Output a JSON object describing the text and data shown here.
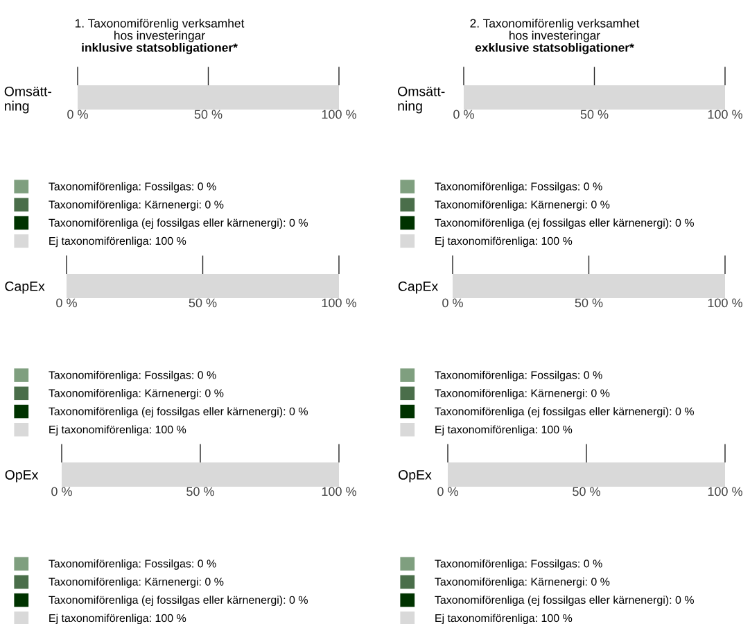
{
  "chart_data": [
    {
      "type": "bar",
      "orientation": "horizontal",
      "title": "1. Taxonomiförenlig verksamhet\nhos investeringar",
      "subtitle": "inklusive statsobligationer*",
      "categories": [
        "Omsätt-\nning"
      ],
      "xlim": [
        0,
        100
      ],
      "xticks": [
        {
          "value": 0,
          "label": "0 %"
        },
        {
          "value": 50,
          "label": "50 %"
        },
        {
          "value": 100,
          "label": "100 %"
        }
      ],
      "legend": "bottom",
      "series": [
        {
          "name": "Taxonomiförenliga: Fossilgas: 0 %",
          "color": "#7f9f7f",
          "values": [
            0
          ]
        },
        {
          "name": "Taxonomiförenliga: Kärnenergi: 0 %",
          "color": "#4a6e4a",
          "values": [
            0
          ]
        },
        {
          "name": "Taxonomiförenliga (ej fossilgas eller kärnenergi): 0 %",
          "color": "#003300",
          "values": [
            0
          ]
        },
        {
          "name": "Ej taxonomiförenliga: 100 %",
          "color": "#d9d9d9",
          "values": [
            100
          ]
        }
      ]
    },
    {
      "type": "bar",
      "orientation": "horizontal",
      "categories": [
        "CapEx"
      ],
      "xlim": [
        0,
        100
      ],
      "xticks": [
        {
          "value": 0,
          "label": "0 %"
        },
        {
          "value": 50,
          "label": "50 %"
        },
        {
          "value": 100,
          "label": "100 %"
        }
      ],
      "legend": "bottom",
      "series": [
        {
          "name": "Taxonomiförenliga: Fossilgas: 0 %",
          "color": "#7f9f7f",
          "values": [
            0
          ]
        },
        {
          "name": "Taxonomiförenliga: Kärnenergi: 0 %",
          "color": "#4a6e4a",
          "values": [
            0
          ]
        },
        {
          "name": "Taxonomiförenliga (ej fossilgas eller kärnenergi): 0 %",
          "color": "#003300",
          "values": [
            0
          ]
        },
        {
          "name": "Ej taxonomiförenliga: 100 %",
          "color": "#d9d9d9",
          "values": [
            100
          ]
        }
      ]
    },
    {
      "type": "bar",
      "orientation": "horizontal",
      "categories": [
        "OpEx"
      ],
      "xlim": [
        0,
        100
      ],
      "xticks": [
        {
          "value": 0,
          "label": "0 %"
        },
        {
          "value": 50,
          "label": "50 %"
        },
        {
          "value": 100,
          "label": "100 %"
        }
      ],
      "legend": "bottom",
      "series": [
        {
          "name": "Taxonomiförenliga: Fossilgas: 0 %",
          "color": "#7f9f7f",
          "values": [
            0
          ]
        },
        {
          "name": "Taxonomiförenliga: Kärnenergi: 0 %",
          "color": "#4a6e4a",
          "values": [
            0
          ]
        },
        {
          "name": "Taxonomiförenliga (ej fossilgas eller kärnenergi): 0 %",
          "color": "#003300",
          "values": [
            0
          ]
        },
        {
          "name": "Ej taxonomiförenliga: 100 %",
          "color": "#d9d9d9",
          "values": [
            100
          ]
        }
      ]
    },
    {
      "type": "bar",
      "orientation": "horizontal",
      "title": "2. Taxonomiförenlig verksamhet\nhos investeringar",
      "subtitle": "exklusive statsobligationer*",
      "categories": [
        "Omsätt-\nning"
      ],
      "xlim": [
        0,
        100
      ],
      "xticks": [
        {
          "value": 0,
          "label": "0 %"
        },
        {
          "value": 50,
          "label": "50 %"
        },
        {
          "value": 100,
          "label": "100 %"
        }
      ],
      "legend": "bottom",
      "series": [
        {
          "name": "Taxonomiförenliga: Fossilgas: 0 %",
          "color": "#7f9f7f",
          "values": [
            0
          ]
        },
        {
          "name": "Taxonomiförenliga: Kärnenergi: 0 %",
          "color": "#4a6e4a",
          "values": [
            0
          ]
        },
        {
          "name": "Taxonomiförenliga (ej fossilgas eller kärnenergi): 0 %",
          "color": "#003300",
          "values": [
            0
          ]
        },
        {
          "name": "Ej taxonomiförenliga: 100 %",
          "color": "#d9d9d9",
          "values": [
            100
          ]
        }
      ]
    },
    {
      "type": "bar",
      "orientation": "horizontal",
      "categories": [
        "CapEx"
      ],
      "xlim": [
        0,
        100
      ],
      "xticks": [
        {
          "value": 0,
          "label": "0 %"
        },
        {
          "value": 50,
          "label": "50 %"
        },
        {
          "value": 100,
          "label": "100 %"
        }
      ],
      "legend": "bottom",
      "series": [
        {
          "name": "Taxonomiförenliga: Fossilgas: 0 %",
          "color": "#7f9f7f",
          "values": [
            0
          ]
        },
        {
          "name": "Taxonomiförenliga: Kärnenergi: 0 %",
          "color": "#4a6e4a",
          "values": [
            0
          ]
        },
        {
          "name": "Taxonomiförenliga (ej fossilgas eller kärnenergi): 0 %",
          "color": "#003300",
          "values": [
            0
          ]
        },
        {
          "name": "Ej taxonomiförenliga: 100 %",
          "color": "#d9d9d9",
          "values": [
            100
          ]
        }
      ]
    },
    {
      "type": "bar",
      "orientation": "horizontal",
      "categories": [
        "OpEx"
      ],
      "xlim": [
        0,
        100
      ],
      "xticks": [
        {
          "value": 0,
          "label": "0 %"
        },
        {
          "value": 50,
          "label": "50 %"
        },
        {
          "value": 100,
          "label": "100 %"
        }
      ],
      "legend": "bottom",
      "series": [
        {
          "name": "Taxonomiförenliga: Fossilgas: 0 %",
          "color": "#7f9f7f",
          "values": [
            0
          ]
        },
        {
          "name": "Taxonomiförenliga: Kärnenergi: 0 %",
          "color": "#4a6e4a",
          "values": [
            0
          ]
        },
        {
          "name": "Taxonomiförenliga (ej fossilgas eller kärnenergi): 0 %",
          "color": "#003300",
          "values": [
            0
          ]
        },
        {
          "name": "Ej taxonomiförenliga: 100 %",
          "color": "#d9d9d9",
          "values": [
            100
          ]
        }
      ]
    }
  ]
}
